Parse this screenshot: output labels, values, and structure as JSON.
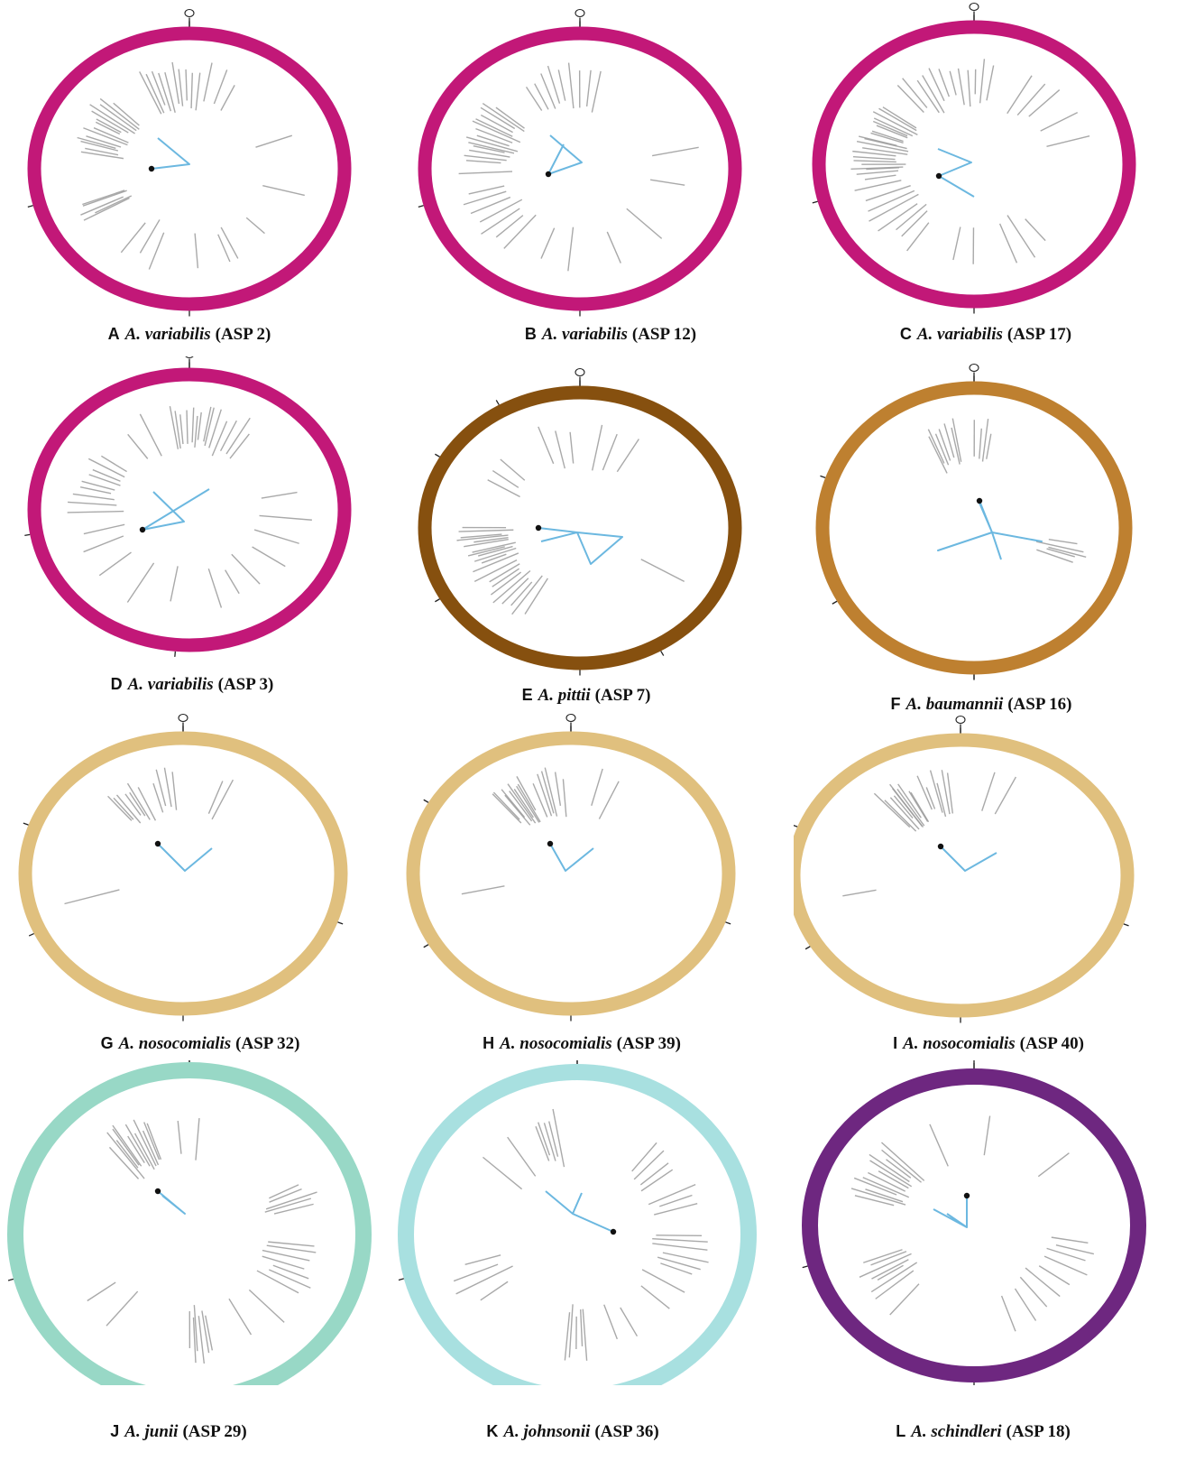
{
  "colors": {
    "magenta": "#c21878",
    "brown": "#86500f",
    "orange": "#be8030",
    "tan": "#e0c07e",
    "seafoam": "#98d8c6",
    "cyan": "#a8e0e0",
    "purple": "#6e2780",
    "gray_line": "#9a9a9a",
    "blue_line": "#6cb8e0",
    "dot": "#111111"
  },
  "panels": [
    {
      "letter": "A",
      "species": "A. variabilis",
      "strain": "(ASP 2)",
      "ring_color": "magenta"
    },
    {
      "letter": "B",
      "species": "A. variabilis",
      "strain": "(ASP 12)",
      "ring_color": "magenta"
    },
    {
      "letter": "C",
      "species": "A. variabilis",
      "strain": "(ASP 17)",
      "ring_color": "magenta"
    },
    {
      "letter": "D",
      "species": "A. variabilis",
      "strain": "(ASP 3)",
      "ring_color": "magenta"
    },
    {
      "letter": "E",
      "species": "A. pittii",
      "strain": "(ASP 7)",
      "ring_color": "brown"
    },
    {
      "letter": "F",
      "species": "A. baumannii",
      "strain": "(ASP 16)",
      "ring_color": "orange"
    },
    {
      "letter": "G",
      "species": "A. nosocomialis",
      "strain": "(ASP 32)",
      "ring_color": "tan"
    },
    {
      "letter": "H",
      "species": "A. nosocomialis",
      "strain": "(ASP 39)",
      "ring_color": "tan"
    },
    {
      "letter": "I",
      "species": "A. nosocomialis",
      "strain": "(ASP 40)",
      "ring_color": "tan"
    },
    {
      "letter": "J",
      "species": "A. junii",
      "strain": "(ASP 29)",
      "ring_color": "seafoam"
    },
    {
      "letter": "K",
      "species": "A. johnsonii",
      "strain": "(ASP 36)",
      "ring_color": "cyan"
    },
    {
      "letter": "L",
      "species": "A. schindleri",
      "strain": "(ASP 18)",
      "ring_color": "purple"
    }
  ]
}
